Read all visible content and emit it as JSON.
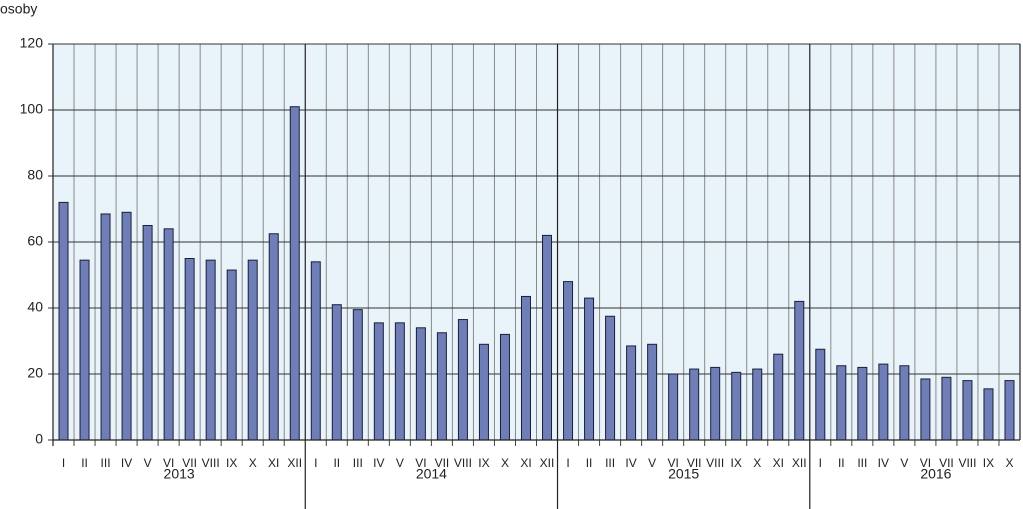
{
  "chart_data": {
    "type": "bar",
    "y_label": "osoby",
    "color": "#6f7eb6",
    "groups": [
      {
        "name": "2013",
        "categories": [
          "I",
          "II",
          "III",
          "IV",
          "V",
          "VI",
          "VII",
          "VIII",
          "IX",
          "X",
          "XI",
          "XII"
        ],
        "values": [
          72,
          54.5,
          68.5,
          69,
          65,
          64,
          55,
          54.5,
          51.5,
          54.5,
          62.5,
          101
        ]
      },
      {
        "name": "2014",
        "categories": [
          "I",
          "II",
          "III",
          "IV",
          "V",
          "VI",
          "VII",
          "VIII",
          "IX",
          "X",
          "XI",
          "XII"
        ],
        "values": [
          54,
          41,
          39.5,
          35.5,
          35.5,
          34,
          32.5,
          36.5,
          29,
          32,
          43.5,
          62
        ]
      },
      {
        "name": "2015",
        "categories": [
          "I",
          "II",
          "III",
          "IV",
          "V",
          "VI",
          "VII",
          "VIII",
          "IX",
          "X",
          "XI",
          "XII"
        ],
        "values": [
          48,
          43,
          37.5,
          28.5,
          29,
          20,
          21.5,
          22,
          20.5,
          21.5,
          26,
          42
        ]
      },
      {
        "name": "2016",
        "categories": [
          "I",
          "II",
          "III",
          "IV",
          "V",
          "VI",
          "VII",
          "VIII",
          "IX",
          "X"
        ],
        "values": [
          27.5,
          22.5,
          22,
          23,
          22.5,
          18.5,
          19,
          18,
          15.5,
          18
        ]
      }
    ],
    "ylim": [
      0,
      120
    ],
    "yticks": [
      0,
      20,
      40,
      60,
      80,
      100,
      120
    ],
    "grid": true
  }
}
